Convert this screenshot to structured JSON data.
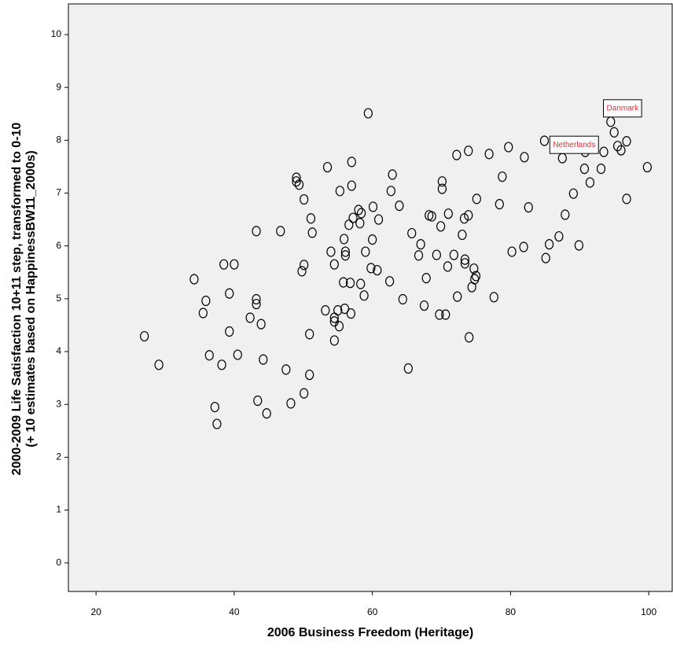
{
  "chart_data": {
    "type": "scatter",
    "xlabel": "2006 Business Freedom (Heritage)",
    "ylabel": [
      "2000-2009 Life Satisfaction 10+11 step, transformed to 0-10",
      "(+ 10 estimates based on HappinessBW11_2000s)"
    ],
    "xlim": [
      16.0,
      103.4
    ],
    "ylim": [
      -0.54,
      10.58
    ],
    "xticks": [
      20,
      40,
      60,
      80,
      100
    ],
    "yticks": [
      0,
      1,
      2,
      3,
      4,
      5,
      6,
      7,
      8,
      9,
      10
    ],
    "marker_color": "#000000",
    "x": [
      27.0,
      29.1,
      34.2,
      35.9,
      35.5,
      36.4,
      37.2,
      37.5,
      38.2,
      38.5,
      40.0,
      39.3,
      39.3,
      40.5,
      42.3,
      43.2,
      43.2,
      43.2,
      43.9,
      44.2,
      43.4,
      44.7,
      46.7,
      47.5,
      48.2,
      49.0,
      49.0,
      49.4,
      50.1,
      50.1,
      49.8,
      50.1,
      51.1,
      51.3,
      50.9,
      50.9,
      53.5,
      54.0,
      53.2,
      54.5,
      54.5,
      54.5,
      54.5,
      55.2,
      55.0,
      55.3,
      55.9,
      56.1,
      56.1,
      55.8,
      56.0,
      56.8,
      56.9,
      57.0,
      57.0,
      57.2,
      56.6,
      58.0,
      58.4,
      58.2,
      58.3,
      58.8,
      59.0,
      59.4,
      59.8,
      60.1,
      60.0,
      60.7,
      60.9,
      62.5,
      62.7,
      62.9,
      63.9,
      64.4,
      65.2,
      65.7,
      66.7,
      67.0,
      67.5,
      67.8,
      68.2,
      68.6,
      69.3,
      69.7,
      70.6,
      69.9,
      70.1,
      70.1,
      70.9,
      71.0,
      71.8,
      72.3,
      72.2,
      73.0,
      73.3,
      73.4,
      73.4,
      73.9,
      73.9,
      74.0,
      74.4,
      74.7,
      74.8,
      75.0,
      75.1,
      77.6,
      76.9,
      78.4,
      78.8,
      79.7,
      80.2,
      81.9,
      82.0,
      82.6,
      84.9,
      85.1,
      85.6,
      87.0,
      87.5,
      87.9,
      89.1,
      89.9,
      90.7,
      90.8,
      91.5,
      93.1,
      93.5,
      94.5,
      95.0,
      95.5,
      96.0,
      96.8,
      96.8,
      99.8
    ],
    "values": [
      4.29,
      3.75,
      5.37,
      4.96,
      4.73,
      3.93,
      2.95,
      2.63,
      3.75,
      5.65,
      5.65,
      5.1,
      4.38,
      3.94,
      4.64,
      6.28,
      4.99,
      4.9,
      4.52,
      3.85,
      3.07,
      2.83,
      6.28,
      3.66,
      3.02,
      7.29,
      7.22,
      7.16,
      6.88,
      5.64,
      5.52,
      3.21,
      6.52,
      6.25,
      4.33,
      3.56,
      7.49,
      5.89,
      4.78,
      4.64,
      4.57,
      4.21,
      5.65,
      4.48,
      4.78,
      7.04,
      6.13,
      5.89,
      5.82,
      5.31,
      4.81,
      5.3,
      4.72,
      7.59,
      7.14,
      6.53,
      6.4,
      6.68,
      6.62,
      6.43,
      5.28,
      5.06,
      5.89,
      8.51,
      5.58,
      6.74,
      6.12,
      5.54,
      6.5,
      5.33,
      7.04,
      7.35,
      6.76,
      4.99,
      3.68,
      6.24,
      5.82,
      6.03,
      4.87,
      5.39,
      6.58,
      6.56,
      5.83,
      4.7,
      4.7,
      6.37,
      7.22,
      7.08,
      5.61,
      6.61,
      5.83,
      5.04,
      7.72,
      6.21,
      6.52,
      5.74,
      5.67,
      7.8,
      6.58,
      4.27,
      5.22,
      5.57,
      5.37,
      5.43,
      6.89,
      5.03,
      7.74,
      6.79,
      7.31,
      7.87,
      5.89,
      5.98,
      7.68,
      6.73,
      7.99,
      5.77,
      6.03,
      6.18,
      7.66,
      6.59,
      6.99,
      6.01,
      7.46,
      7.78,
      7.2,
      7.46,
      7.78,
      8.35,
      8.15,
      7.89,
      7.81,
      7.98,
      6.89,
      7.49
    ],
    "annotations": [
      {
        "text": "Danmark",
        "x": 94.5,
        "y": 8.35
      },
      {
        "text": "Netherlands",
        "x": 87.5,
        "y": 7.66
      }
    ]
  }
}
